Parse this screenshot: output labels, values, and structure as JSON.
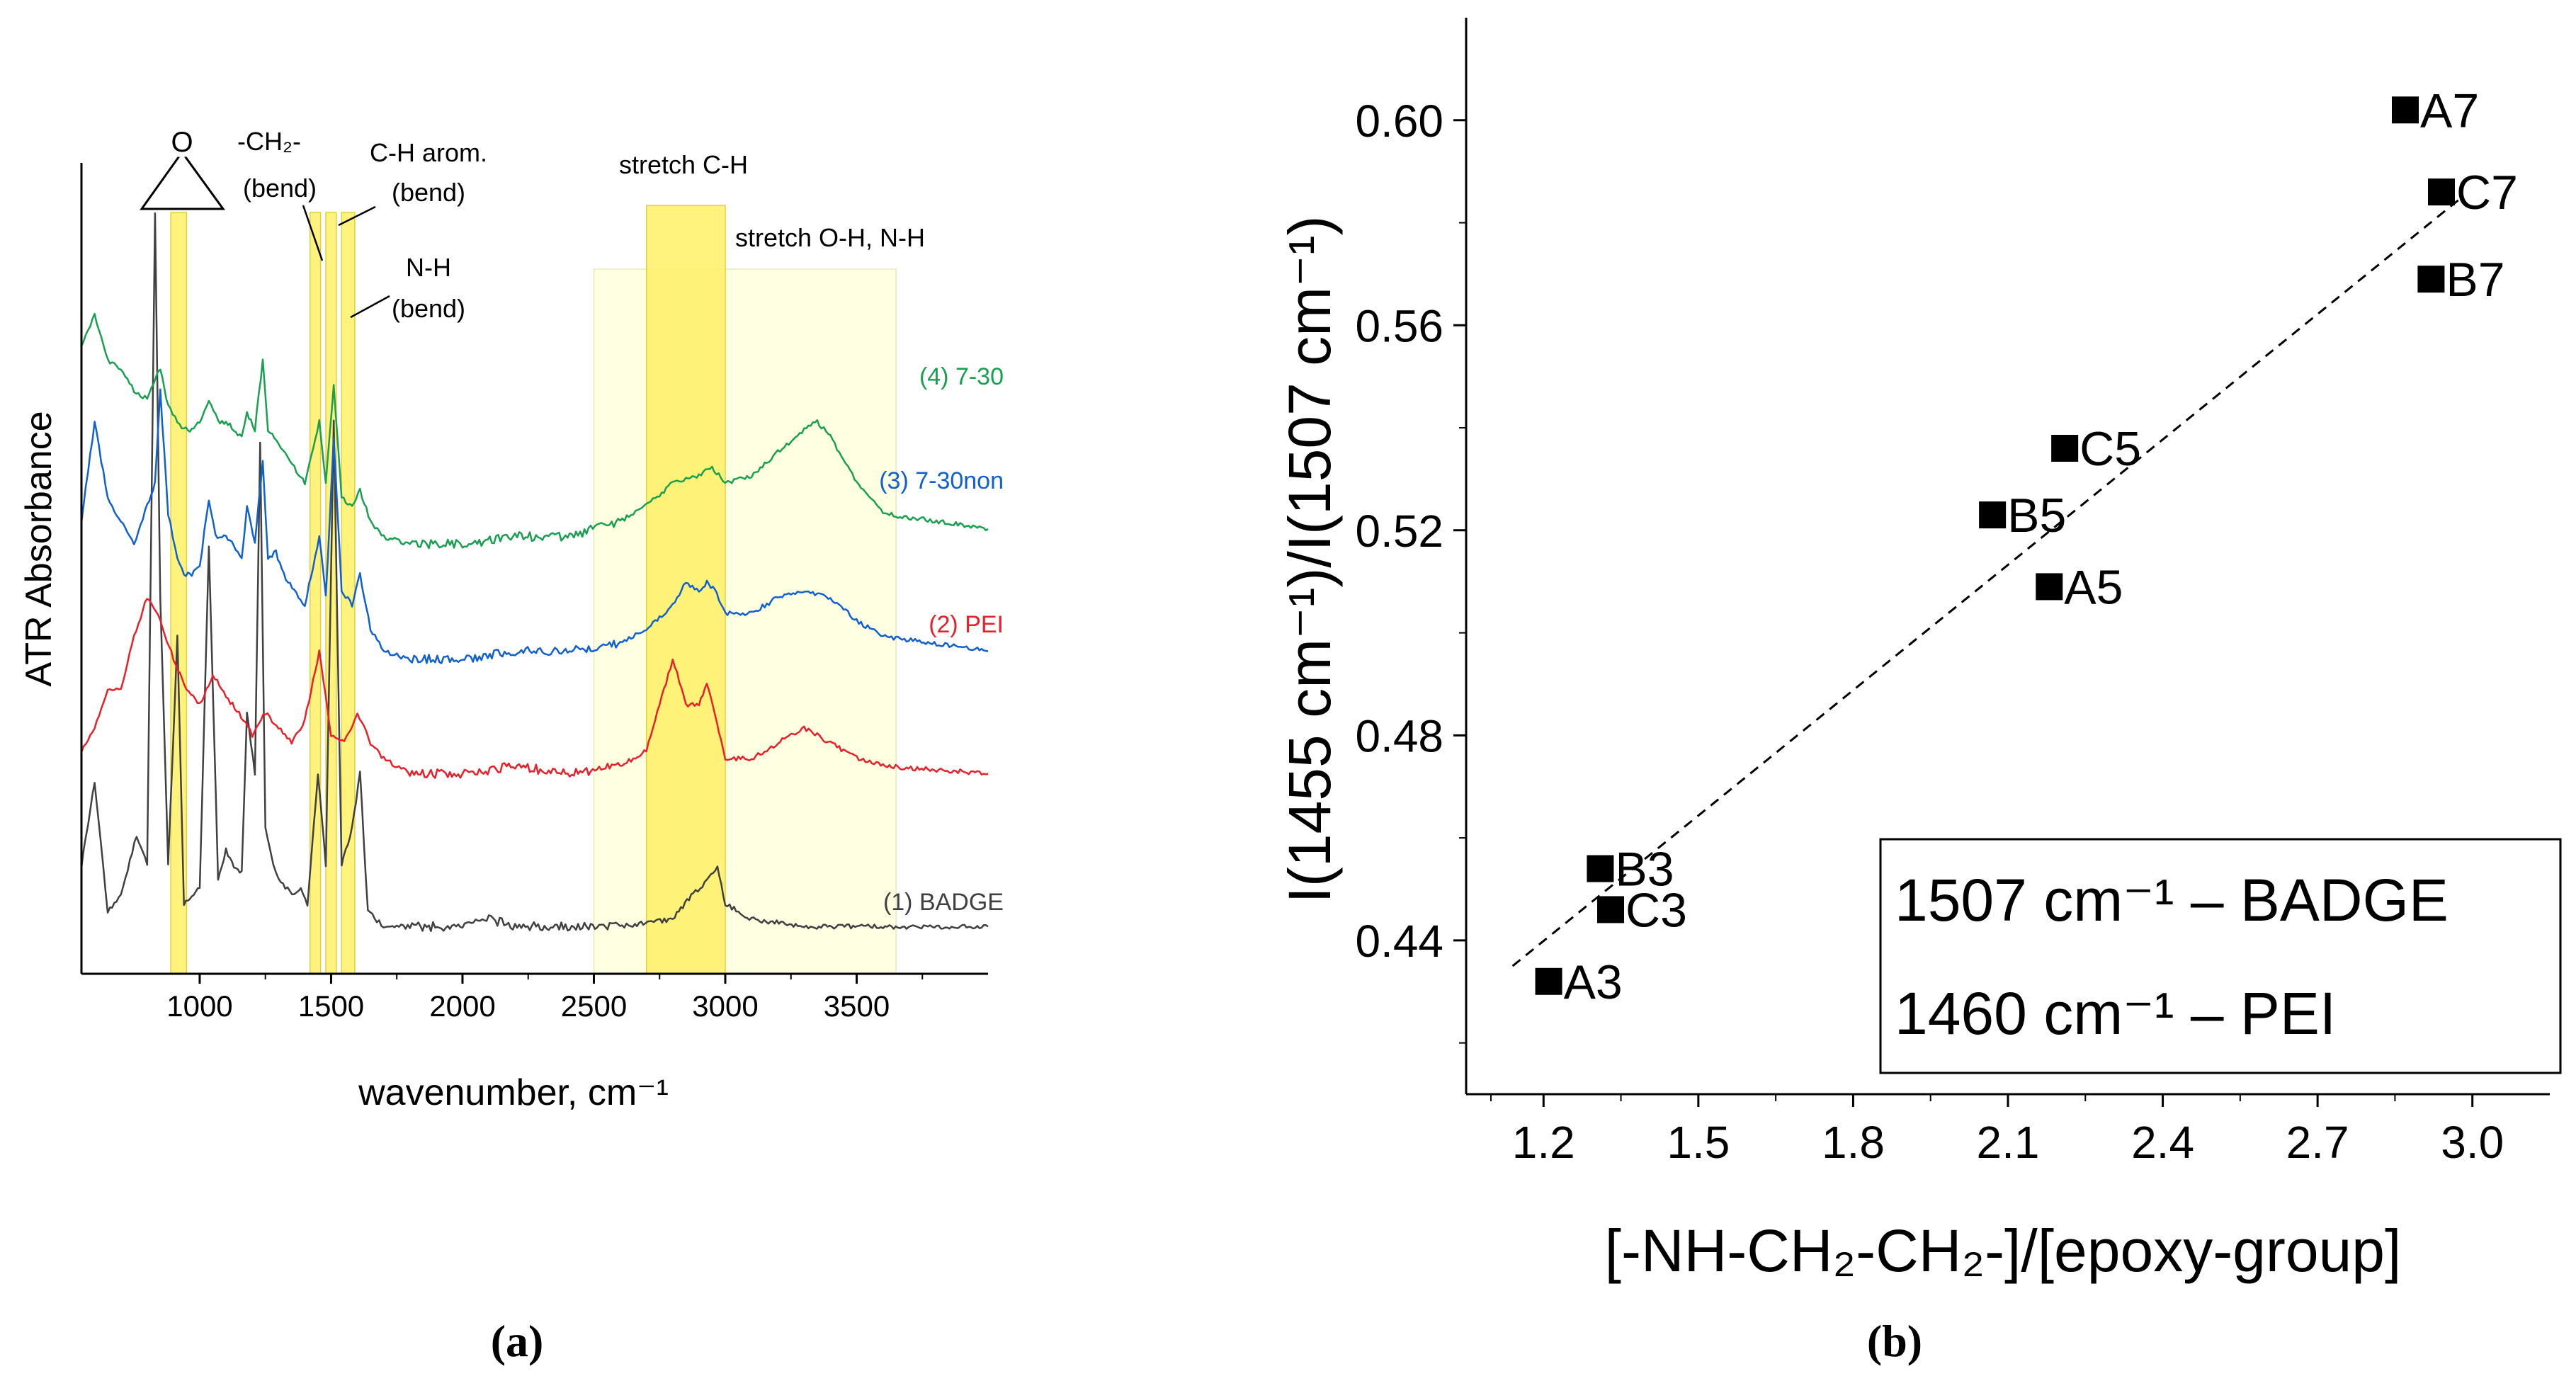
{
  "chart_data": [
    {
      "panel": "(a)",
      "type": "line",
      "panel_label": "(a)",
      "xlabel": "wavenumber, cm⁻¹",
      "ylabel": "ATR Absorbance",
      "xlim": [
        550,
        4000
      ],
      "ylim": [
        0,
        1
      ],
      "x_ticks": [
        1000,
        1500,
        2000,
        2500,
        3000,
        3500
      ],
      "x_tick_labels": [
        "1000",
        "1500",
        "2000",
        "2500",
        "3000",
        "3500"
      ],
      "series": [
        {
          "name": "(1) BADGE",
          "color": "#404040",
          "points": [
            [
              550,
              0.1
            ],
            [
              600,
              0.21
            ],
            [
              650,
              0.04
            ],
            [
              700,
              0.06
            ],
            [
              760,
              0.14
            ],
            [
              800,
              0.1
            ],
            [
              830,
              0.95
            ],
            [
              850,
              0.45
            ],
            [
              880,
              0.1
            ],
            [
              915,
              0.4
            ],
            [
              940,
              0.05
            ],
            [
              970,
              0.06
            ],
            [
              1000,
              0.07
            ],
            [
              1035,
              0.52
            ],
            [
              1070,
              0.08
            ],
            [
              1100,
              0.12
            ],
            [
              1130,
              0.1
            ],
            [
              1160,
              0.09
            ],
            [
              1180,
              0.3
            ],
            [
              1210,
              0.22
            ],
            [
              1230,
              0.65
            ],
            [
              1250,
              0.15
            ],
            [
              1280,
              0.1
            ],
            [
              1300,
              0.08
            ],
            [
              1360,
              0.06
            ],
            [
              1385,
              0.07
            ],
            [
              1410,
              0.05
            ],
            [
              1450,
              0.22
            ],
            [
              1480,
              0.1
            ],
            [
              1510,
              0.68
            ],
            [
              1540,
              0.1
            ],
            [
              1580,
              0.15
            ],
            [
              1610,
              0.22
            ],
            [
              1640,
              0.04
            ],
            [
              1700,
              0.02
            ],
            [
              1800,
              0.02
            ],
            [
              2000,
              0.02
            ],
            [
              2100,
              0.03
            ],
            [
              2200,
              0.02
            ],
            [
              2400,
              0.02
            ],
            [
              2600,
              0.02
            ],
            [
              2800,
              0.03
            ],
            [
              2870,
              0.06
            ],
            [
              2930,
              0.08
            ],
            [
              2970,
              0.1
            ],
            [
              3000,
              0.05
            ],
            [
              3100,
              0.03
            ],
            [
              3300,
              0.02
            ],
            [
              3600,
              0.02
            ],
            [
              4000,
              0.02
            ]
          ]
        },
        {
          "name": "(2) PEI",
          "color": "#e8202a",
          "points": [
            [
              550,
              0.25
            ],
            [
              600,
              0.28
            ],
            [
              650,
              0.33
            ],
            [
              700,
              0.33
            ],
            [
              750,
              0.4
            ],
            [
              800,
              0.45
            ],
            [
              850,
              0.42
            ],
            [
              900,
              0.37
            ],
            [
              950,
              0.33
            ],
            [
              1000,
              0.31
            ],
            [
              1050,
              0.35
            ],
            [
              1100,
              0.32
            ],
            [
              1150,
              0.3
            ],
            [
              1200,
              0.27
            ],
            [
              1250,
              0.3
            ],
            [
              1300,
              0.28
            ],
            [
              1350,
              0.26
            ],
            [
              1400,
              0.29
            ],
            [
              1455,
              0.38
            ],
            [
              1500,
              0.27
            ],
            [
              1550,
              0.26
            ],
            [
              1600,
              0.3
            ],
            [
              1650,
              0.26
            ],
            [
              1700,
              0.24
            ],
            [
              1800,
              0.22
            ],
            [
              2000,
              0.22
            ],
            [
              2200,
              0.23
            ],
            [
              2400,
              0.22
            ],
            [
              2600,
              0.23
            ],
            [
              2700,
              0.25
            ],
            [
              2800,
              0.37
            ],
            [
              2850,
              0.31
            ],
            [
              2900,
              0.31
            ],
            [
              2930,
              0.34
            ],
            [
              2960,
              0.3
            ],
            [
              3000,
              0.24
            ],
            [
              3100,
              0.24
            ],
            [
              3200,
              0.26
            ],
            [
              3300,
              0.28
            ],
            [
              3400,
              0.26
            ],
            [
              3500,
              0.24
            ],
            [
              3600,
              0.23
            ],
            [
              4000,
              0.22
            ]
          ]
        },
        {
          "name": "(3) 7-30non",
          "color": "#1060d0",
          "points": [
            [
              550,
              0.55
            ],
            [
              600,
              0.68
            ],
            [
              650,
              0.58
            ],
            [
              700,
              0.55
            ],
            [
              750,
              0.52
            ],
            [
              800,
              0.57
            ],
            [
              830,
              0.6
            ],
            [
              850,
              0.72
            ],
            [
              880,
              0.56
            ],
            [
              915,
              0.5
            ],
            [
              940,
              0.48
            ],
            [
              970,
              0.48
            ],
            [
              1000,
              0.49
            ],
            [
              1035,
              0.58
            ],
            [
              1060,
              0.53
            ],
            [
              1100,
              0.53
            ],
            [
              1130,
              0.52
            ],
            [
              1160,
              0.5
            ],
            [
              1180,
              0.57
            ],
            [
              1210,
              0.52
            ],
            [
              1240,
              0.63
            ],
            [
              1260,
              0.5
            ],
            [
              1290,
              0.51
            ],
            [
              1320,
              0.48
            ],
            [
              1360,
              0.46
            ],
            [
              1400,
              0.44
            ],
            [
              1455,
              0.53
            ],
            [
              1480,
              0.45
            ],
            [
              1510,
              0.66
            ],
            [
              1540,
              0.46
            ],
            [
              1580,
              0.44
            ],
            [
              1610,
              0.48
            ],
            [
              1650,
              0.41
            ],
            [
              1700,
              0.38
            ],
            [
              1800,
              0.37
            ],
            [
              2000,
              0.37
            ],
            [
              2200,
              0.38
            ],
            [
              2400,
              0.38
            ],
            [
              2600,
              0.39
            ],
            [
              2700,
              0.41
            ],
            [
              2800,
              0.44
            ],
            [
              2850,
              0.47
            ],
            [
              2900,
              0.46
            ],
            [
              2930,
              0.47
            ],
            [
              2960,
              0.46
            ],
            [
              3000,
              0.43
            ],
            [
              3100,
              0.43
            ],
            [
              3200,
              0.45
            ],
            [
              3300,
              0.46
            ],
            [
              3400,
              0.45
            ],
            [
              3500,
              0.42
            ],
            [
              3600,
              0.4
            ],
            [
              4000,
              0.38
            ]
          ]
        },
        {
          "name": "(4) 7-30",
          "color": "#18a050",
          "points": [
            [
              550,
              0.78
            ],
            [
              600,
              0.82
            ],
            [
              650,
              0.76
            ],
            [
              700,
              0.75
            ],
            [
              750,
              0.72
            ],
            [
              800,
              0.71
            ],
            [
              850,
              0.75
            ],
            [
              880,
              0.7
            ],
            [
              915,
              0.68
            ],
            [
              940,
              0.67
            ],
            [
              970,
              0.67
            ],
            [
              1000,
              0.68
            ],
            [
              1035,
              0.71
            ],
            [
              1070,
              0.68
            ],
            [
              1100,
              0.68
            ],
            [
              1130,
              0.67
            ],
            [
              1160,
              0.66
            ],
            [
              1180,
              0.69
            ],
            [
              1210,
              0.67
            ],
            [
              1240,
              0.76
            ],
            [
              1260,
              0.67
            ],
            [
              1300,
              0.65
            ],
            [
              1360,
              0.62
            ],
            [
              1400,
              0.6
            ],
            [
              1455,
              0.68
            ],
            [
              1480,
              0.6
            ],
            [
              1510,
              0.73
            ],
            [
              1540,
              0.58
            ],
            [
              1580,
              0.57
            ],
            [
              1610,
              0.59
            ],
            [
              1650,
              0.55
            ],
            [
              1700,
              0.53
            ],
            [
              1800,
              0.52
            ],
            [
              2000,
              0.52
            ],
            [
              2200,
              0.53
            ],
            [
              2400,
              0.53
            ],
            [
              2600,
              0.55
            ],
            [
              2700,
              0.57
            ],
            [
              2800,
              0.6
            ],
            [
              2900,
              0.61
            ],
            [
              2950,
              0.62
            ],
            [
              3000,
              0.6
            ],
            [
              3100,
              0.61
            ],
            [
              3200,
              0.64
            ],
            [
              3300,
              0.67
            ],
            [
              3350,
              0.68
            ],
            [
              3400,
              0.66
            ],
            [
              3500,
              0.6
            ],
            [
              3600,
              0.56
            ],
            [
              4000,
              0.54
            ]
          ]
        }
      ],
      "highlight_bands": [
        {
          "label": "epoxide ring",
          "from": 890,
          "to": 950,
          "color": "#fff066"
        },
        {
          "label": "-CH₂- (bend)",
          "from": 1420,
          "to": 1460,
          "color": "#fff066"
        },
        {
          "label": "C-H arom. (bend)",
          "from": 1480,
          "to": 1520,
          "color": "#fff066"
        },
        {
          "label": "N-H (bend)",
          "from": 1540,
          "to": 1590,
          "color": "#fff066"
        },
        {
          "label": "stretch C-H",
          "from": 2700,
          "to": 3000,
          "color": "#fff066"
        },
        {
          "label": "stretch O-H, N-H",
          "from": 2500,
          "to": 3650,
          "color": "#ffffde"
        }
      ],
      "annotations": [
        {
          "text": "O",
          "role": "epoxide ring oxygen"
        },
        {
          "text": "-CH₂-"
        },
        {
          "text": "(bend)"
        },
        {
          "text": "C-H arom."
        },
        {
          "text": "(bend)"
        },
        {
          "text": "N-H"
        },
        {
          "text": "(bend)"
        },
        {
          "text": "stretch C-H"
        },
        {
          "text": "stretch O-H, N-H"
        }
      ]
    },
    {
      "panel": "(b)",
      "type": "scatter",
      "panel_label": "(b)",
      "xlabel": "[-NH-CH₂-CH₂-]/[epoxy-group]",
      "ylabel": "I(1455 cm⁻¹)/I(1507 cm⁻¹)",
      "xlim": [
        1.05,
        3.15
      ],
      "ylim": [
        0.41,
        0.62
      ],
      "x_ticks": [
        1.2,
        1.5,
        1.8,
        2.1,
        2.4,
        2.7,
        3.0
      ],
      "x_tick_labels": [
        "1.2",
        "1.5",
        "1.8",
        "2.1",
        "2.4",
        "2.7",
        "3.0"
      ],
      "y_ticks": [
        0.44,
        0.48,
        0.52,
        0.56,
        0.6
      ],
      "y_tick_labels": [
        "0.44",
        "0.48",
        "0.52",
        "0.56",
        "0.60"
      ],
      "points": [
        {
          "label": "A3",
          "x": 1.21,
          "y": 0.432
        },
        {
          "label": "B3",
          "x": 1.31,
          "y": 0.454
        },
        {
          "label": "C3",
          "x": 1.33,
          "y": 0.446
        },
        {
          "label": "A5",
          "x": 2.18,
          "y": 0.509
        },
        {
          "label": "B5",
          "x": 2.07,
          "y": 0.523
        },
        {
          "label": "C5",
          "x": 2.21,
          "y": 0.536
        },
        {
          "label": "A7",
          "x": 2.87,
          "y": 0.602
        },
        {
          "label": "B7",
          "x": 2.92,
          "y": 0.569
        },
        {
          "label": "C7",
          "x": 2.94,
          "y": 0.586
        }
      ],
      "fit_line": {
        "x": [
          1.14,
          2.98
        ],
        "y": [
          0.435,
          0.585
        ],
        "style": "dashed"
      },
      "legend_box": {
        "position": "bottom-right",
        "lines": [
          "1507 cm⁻¹ – BADGE",
          "1460 cm⁻¹ – PEI"
        ]
      }
    }
  ]
}
